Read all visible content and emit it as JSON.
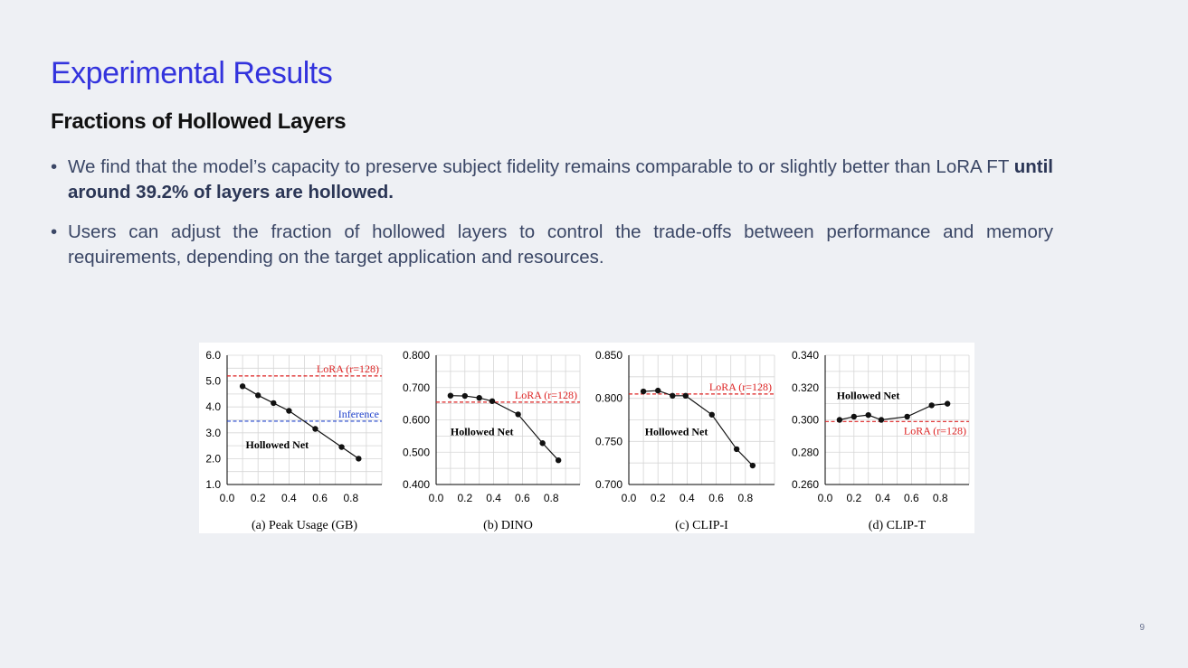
{
  "slide": {
    "title": "Experimental Results",
    "subtitle": "Fractions of Hollowed Layers",
    "page_number": "9",
    "colors": {
      "title": "#3333dd",
      "subtitle": "#111111",
      "body_text": "#3b4766",
      "background": "#eef0f4",
      "lora_line": "#dd2222",
      "inference_line": "#2244cc",
      "series": "#111111"
    }
  },
  "bullets": [
    {
      "text": "We find that the model’s capacity to preserve subject fidelity remains comparable to or slightly better than LoRA FT ",
      "bold": "until around 39.2% of layers are hollowed."
    },
    {
      "text": "Users can adjust the fraction of hollowed layers to control the trade-offs between performance and memory requirements, depending on the target application and resources.",
      "bold": ""
    }
  ],
  "chart_data": [
    {
      "type": "line",
      "title": "(a) Peak Usage (GB)",
      "x": [
        0.1,
        0.2,
        0.3,
        0.4,
        0.57,
        0.74,
        0.85
      ],
      "series": [
        {
          "name": "Hollowed Net",
          "values": [
            4.8,
            4.45,
            4.15,
            3.85,
            3.15,
            2.45,
            2.0
          ]
        }
      ],
      "reference_lines": [
        {
          "label": "LoRA (r=128)",
          "value": 5.2,
          "color": "#dd2222"
        },
        {
          "label": "Inference",
          "value": 3.45,
          "color": "#2244cc"
        }
      ],
      "xlim": [
        0.0,
        1.0
      ],
      "ylim": [
        1.0,
        6.0
      ],
      "xticks": [
        "0.0",
        "0.2",
        "0.4",
        "0.6",
        "0.8"
      ],
      "yticks": [
        "1.0",
        "2.0",
        "3.0",
        "4.0",
        "5.0",
        "6.0"
      ],
      "grid": true
    },
    {
      "type": "line",
      "title": "(b) DINO",
      "x": [
        0.1,
        0.2,
        0.3,
        0.39,
        0.57,
        0.74,
        0.85
      ],
      "series": [
        {
          "name": "Hollowed Net",
          "values": [
            0.675,
            0.674,
            0.668,
            0.658,
            0.617,
            0.528,
            0.475
          ]
        }
      ],
      "reference_lines": [
        {
          "label": "LoRA (r=128)",
          "value": 0.655,
          "color": "#dd2222"
        }
      ],
      "xlim": [
        0.0,
        1.0
      ],
      "ylim": [
        0.4,
        0.8
      ],
      "xticks": [
        "0.0",
        "0.2",
        "0.4",
        "0.6",
        "0.8"
      ],
      "yticks": [
        "0.400",
        "0.500",
        "0.600",
        "0.700",
        "0.800"
      ],
      "grid": true
    },
    {
      "type": "line",
      "title": "(c) CLIP-I",
      "x": [
        0.1,
        0.2,
        0.3,
        0.39,
        0.57,
        0.74,
        0.85
      ],
      "series": [
        {
          "name": "Hollowed Net",
          "values": [
            0.808,
            0.809,
            0.803,
            0.803,
            0.781,
            0.741,
            0.722
          ]
        }
      ],
      "reference_lines": [
        {
          "label": "LoRA (r=128)",
          "value": 0.805,
          "color": "#dd2222"
        }
      ],
      "xlim": [
        0.0,
        1.0
      ],
      "ylim": [
        0.7,
        0.85
      ],
      "xticks": [
        "0.0",
        "0.2",
        "0.4",
        "0.6",
        "0.8"
      ],
      "yticks": [
        "0.700",
        "0.750",
        "0.800",
        "0.850"
      ],
      "grid": true
    },
    {
      "type": "line",
      "title": "(d) CLIP-T",
      "x": [
        0.1,
        0.2,
        0.3,
        0.39,
        0.57,
        0.74,
        0.85
      ],
      "series": [
        {
          "name": "Hollowed Net",
          "values": [
            0.3,
            0.302,
            0.303,
            0.3,
            0.302,
            0.309,
            0.31
          ]
        }
      ],
      "reference_lines": [
        {
          "label": "LoRA (r=128)",
          "value": 0.299,
          "color": "#dd2222"
        }
      ],
      "xlim": [
        0.0,
        1.0
      ],
      "ylim": [
        0.26,
        0.34
      ],
      "xticks": [
        "0.0",
        "0.2",
        "0.4",
        "0.6",
        "0.8"
      ],
      "yticks": [
        "0.260",
        "0.280",
        "0.300",
        "0.320",
        "0.340"
      ],
      "grid": true
    }
  ]
}
